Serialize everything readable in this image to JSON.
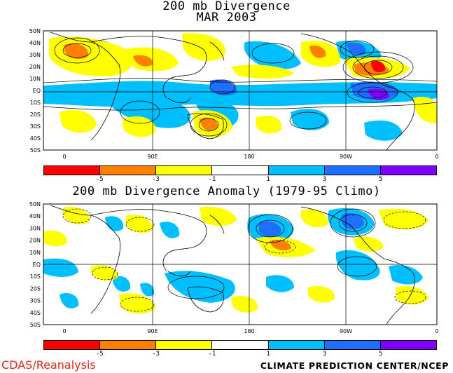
{
  "top_panel": {
    "title_line1": "200 mb Divergence",
    "title_line2": "MAR 2003"
  },
  "bottom_panel": {
    "title": "200 mb Divergence Anomaly (1979-95 Climo)"
  },
  "lat_labels": [
    "50N",
    "40N",
    "30N",
    "20N",
    "10N",
    "EQ",
    "10S",
    "20S",
    "30S",
    "40S",
    "50S"
  ],
  "lon_labels": [
    "0",
    "90E",
    "180",
    "90W",
    "0"
  ],
  "colorbar": {
    "colors": [
      "#ff0000",
      "#ff7f00",
      "#ffff00",
      "#ffffff",
      "#00bfff",
      "#1e6fff",
      "#8000ff"
    ],
    "labels": [
      "-5",
      "-3",
      "-1",
      "1",
      "3",
      "5"
    ]
  },
  "footer": {
    "left": "CDAS/Reanalysis",
    "right": "CLIMATE PREDICTION CENTER/NCEP"
  },
  "colors": {
    "negative_strong": "#ff0000",
    "negative_mid": "#ff7f00",
    "negative_weak": "#ffff00",
    "neutral": "#ffffff",
    "positive_weak": "#00bfff",
    "positive_mid": "#1e6fff",
    "positive_strong": "#8000ff"
  }
}
